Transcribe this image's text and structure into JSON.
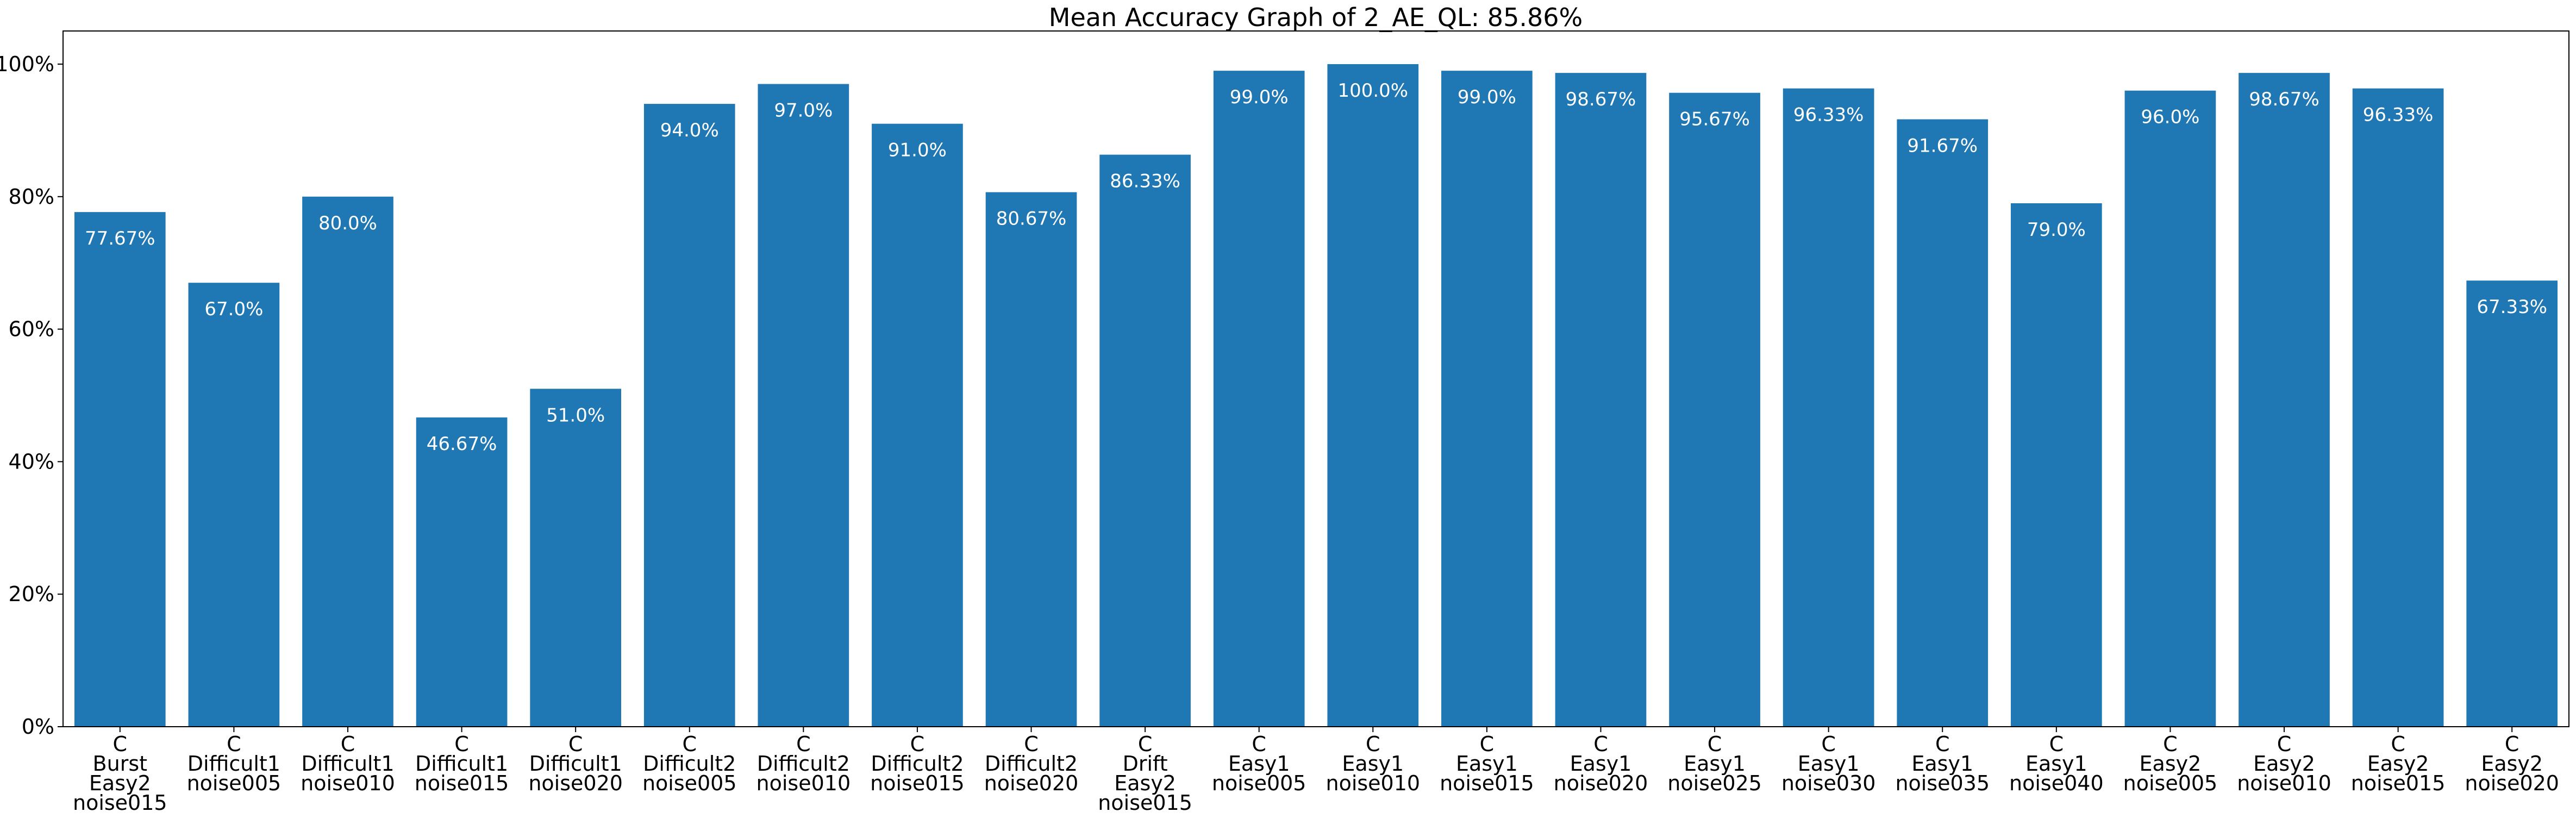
{
  "chart_data": {
    "type": "bar",
    "title": "Mean Accuracy Graph of 2_AE_QL: 85.86%",
    "xlabel": "",
    "ylabel": "",
    "ylim": [
      0,
      105
    ],
    "y_ticks": [
      0,
      20,
      40,
      60,
      80,
      100
    ],
    "y_tick_labels": [
      "0%",
      "20%",
      "40%",
      "60%",
      "80%",
      "100%"
    ],
    "grid": false,
    "bar_color": "#1f77b4",
    "label_color": "#ffffff",
    "categories": [
      [
        "C",
        "Burst",
        "Easy2",
        "noise015"
      ],
      [
        "C",
        "Difficult1",
        "noise005"
      ],
      [
        "C",
        "Difficult1",
        "noise010"
      ],
      [
        "C",
        "Difficult1",
        "noise015"
      ],
      [
        "C",
        "Difficult1",
        "noise020"
      ],
      [
        "C",
        "Difficult2",
        "noise005"
      ],
      [
        "C",
        "Difficult2",
        "noise010"
      ],
      [
        "C",
        "Difficult2",
        "noise015"
      ],
      [
        "C",
        "Difficult2",
        "noise020"
      ],
      [
        "C",
        "Drift",
        "Easy2",
        "noise015"
      ],
      [
        "C",
        "Easy1",
        "noise005"
      ],
      [
        "C",
        "Easy1",
        "noise010"
      ],
      [
        "C",
        "Easy1",
        "noise015"
      ],
      [
        "C",
        "Easy1",
        "noise020"
      ],
      [
        "C",
        "Easy1",
        "noise025"
      ],
      [
        "C",
        "Easy1",
        "noise030"
      ],
      [
        "C",
        "Easy1",
        "noise035"
      ],
      [
        "C",
        "Easy1",
        "noise040"
      ],
      [
        "C",
        "Easy2",
        "noise005"
      ],
      [
        "C",
        "Easy2",
        "noise010"
      ],
      [
        "C",
        "Easy2",
        "noise015"
      ],
      [
        "C",
        "Easy2",
        "noise020"
      ]
    ],
    "values": [
      77.67,
      67.0,
      80.0,
      46.67,
      51.0,
      94.0,
      97.0,
      91.0,
      80.67,
      86.33,
      99.0,
      100.0,
      99.0,
      98.67,
      95.67,
      96.33,
      91.67,
      79.0,
      96.0,
      98.67,
      96.33,
      67.33
    ],
    "data_labels": [
      "77.67%",
      "67.0%",
      "80.0%",
      "46.67%",
      "51.0%",
      "94.0%",
      "97.0%",
      "91.0%",
      "80.67%",
      "86.33%",
      "99.0%",
      "100.0%",
      "99.0%",
      "98.67%",
      "95.67%",
      "96.33%",
      "91.67%",
      "79.0%",
      "96.0%",
      "98.67%",
      "96.33%",
      "67.33%"
    ]
  }
}
